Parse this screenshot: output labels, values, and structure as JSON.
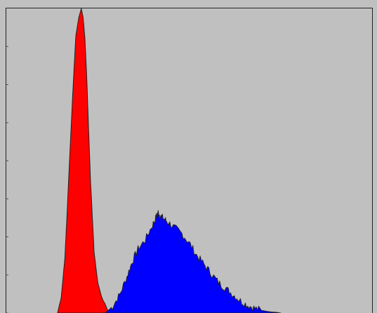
{
  "chart_data": {
    "type": "area",
    "background_color": "#c0c0c0",
    "outline_color": "#222222",
    "grid": false,
    "xlim": [
      0,
      1
    ],
    "ylim": [
      0,
      1
    ],
    "series": [
      {
        "color": "#ff0000",
        "x": [
          0.14,
          0.15,
          0.16,
          0.165,
          0.172,
          0.18,
          0.185,
          0.19,
          0.198,
          0.205,
          0.21,
          0.215,
          0.22,
          0.225,
          0.23,
          0.24,
          0.25,
          0.26,
          0.265,
          0.27,
          0.28
        ],
        "values": [
          0.0,
          0.05,
          0.18,
          0.3,
          0.48,
          0.68,
          0.8,
          0.91,
          0.97,
          1.0,
          0.97,
          0.9,
          0.77,
          0.6,
          0.44,
          0.2,
          0.1,
          0.055,
          0.04,
          0.03,
          0.0
        ]
      },
      {
        "color": "#0000ff",
        "x": [
          0.27,
          0.29,
          0.31,
          0.33,
          0.345,
          0.36,
          0.38,
          0.4,
          0.41,
          0.415,
          0.42,
          0.43,
          0.44,
          0.46,
          0.48,
          0.5,
          0.52,
          0.54,
          0.56,
          0.58,
          0.6,
          0.62,
          0.64,
          0.66,
          0.68,
          0.7,
          0.72,
          0.74,
          0.75
        ],
        "values": [
          0.0,
          0.02,
          0.06,
          0.12,
          0.17,
          0.21,
          0.24,
          0.29,
          0.315,
          0.33,
          0.32,
          0.31,
          0.3,
          0.28,
          0.26,
          0.23,
          0.19,
          0.16,
          0.13,
          0.1,
          0.08,
          0.06,
          0.04,
          0.025,
          0.015,
          0.008,
          0.004,
          0.002,
          0.0
        ]
      }
    ]
  }
}
